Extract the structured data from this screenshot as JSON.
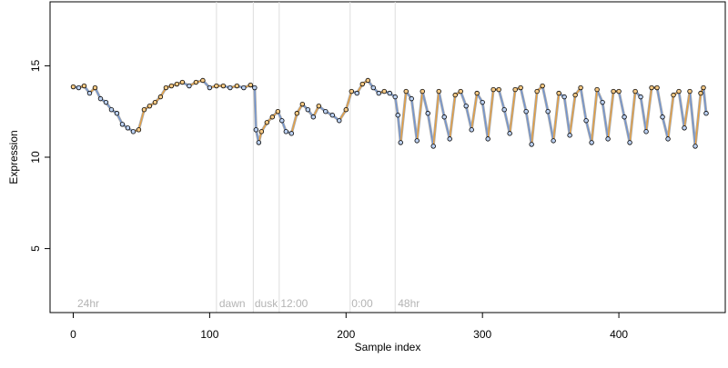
{
  "chart_data": {
    "type": "line",
    "xlabel": "Sample index",
    "ylabel": "Expression",
    "xlim": [
      -17,
      478
    ],
    "ylim": [
      1.5,
      18.5
    ],
    "x_ticks": [
      0,
      100,
      200,
      300,
      400
    ],
    "y_ticks": [
      5,
      10,
      15
    ],
    "grid": false,
    "legend": "none",
    "colors": {
      "gray_line": "#aaaaaa",
      "blue_line": "#6c93d6",
      "orange_line": "#ee9f35",
      "point_fill_blue": "#bcd1f2",
      "point_fill_orange": "#f6c984",
      "point_stroke": "#000000",
      "divider": "#dddddd",
      "segment_label": "#b4b4b4"
    },
    "segment_dividers": [
      105,
      132,
      151,
      203,
      236
    ],
    "segment_labels": [
      {
        "x": 3,
        "label": "24hr"
      },
      {
        "x": 107,
        "label": "dawn"
      },
      {
        "x": 133,
        "label": "dusk"
      },
      {
        "x": 152,
        "label": "12:00"
      },
      {
        "x": 204,
        "label": "0:00"
      },
      {
        "x": 238,
        "label": "48hr"
      }
    ],
    "series": [
      {
        "values": [
          {
            "x": 0,
            "y": 13.85
          },
          {
            "x": 4,
            "y": 13.8
          },
          {
            "x": 8,
            "y": 13.9
          },
          {
            "x": 12,
            "y": 13.5
          },
          {
            "x": 16,
            "y": 13.8
          },
          {
            "x": 20,
            "y": 13.2
          },
          {
            "x": 24,
            "y": 13.0
          },
          {
            "x": 28,
            "y": 12.6
          },
          {
            "x": 32,
            "y": 12.4
          },
          {
            "x": 36,
            "y": 11.8
          },
          {
            "x": 40,
            "y": 11.6
          },
          {
            "x": 44,
            "y": 11.4
          },
          {
            "x": 48,
            "y": 11.5
          },
          {
            "x": 52,
            "y": 12.6
          },
          {
            "x": 56,
            "y": 12.8
          },
          {
            "x": 60,
            "y": 13.0
          },
          {
            "x": 64,
            "y": 13.3
          },
          {
            "x": 68,
            "y": 13.8
          },
          {
            "x": 72,
            "y": 13.9
          },
          {
            "x": 76,
            "y": 14.0
          },
          {
            "x": 80,
            "y": 14.1
          },
          {
            "x": 85,
            "y": 13.9
          },
          {
            "x": 90,
            "y": 14.1
          },
          {
            "x": 95,
            "y": 14.2
          },
          {
            "x": 100,
            "y": 13.8
          },
          {
            "x": 105,
            "y": 13.9
          },
          {
            "x": 110,
            "y": 13.9
          },
          {
            "x": 115,
            "y": 13.8
          },
          {
            "x": 120,
            "y": 13.9
          },
          {
            "x": 125,
            "y": 13.8
          },
          {
            "x": 130,
            "y": 13.95
          },
          {
            "x": 133,
            "y": 13.8
          },
          {
            "x": 134,
            "y": 11.5
          },
          {
            "x": 136,
            "y": 10.8
          },
          {
            "x": 138,
            "y": 11.4
          },
          {
            "x": 142,
            "y": 11.9
          },
          {
            "x": 146,
            "y": 12.2
          },
          {
            "x": 150,
            "y": 12.5
          },
          {
            "x": 153,
            "y": 12.0
          },
          {
            "x": 156,
            "y": 11.4
          },
          {
            "x": 160,
            "y": 11.3
          },
          {
            "x": 164,
            "y": 12.4
          },
          {
            "x": 168,
            "y": 12.9
          },
          {
            "x": 172,
            "y": 12.6
          },
          {
            "x": 176,
            "y": 12.2
          },
          {
            "x": 180,
            "y": 12.8
          },
          {
            "x": 185,
            "y": 12.5
          },
          {
            "x": 190,
            "y": 12.3
          },
          {
            "x": 195,
            "y": 12.0
          },
          {
            "x": 200,
            "y": 12.6
          },
          {
            "x": 204,
            "y": 13.6
          },
          {
            "x": 208,
            "y": 13.5
          },
          {
            "x": 212,
            "y": 14.0
          },
          {
            "x": 216,
            "y": 14.2
          },
          {
            "x": 220,
            "y": 13.8
          },
          {
            "x": 224,
            "y": 13.5
          },
          {
            "x": 228,
            "y": 13.6
          },
          {
            "x": 232,
            "y": 13.5
          },
          {
            "x": 236,
            "y": 13.3
          },
          {
            "x": 238,
            "y": 12.3
          },
          {
            "x": 240,
            "y": 10.8
          },
          {
            "x": 244,
            "y": 13.6
          },
          {
            "x": 248,
            "y": 13.2
          },
          {
            "x": 252,
            "y": 10.9
          },
          {
            "x": 256,
            "y": 13.6
          },
          {
            "x": 260,
            "y": 12.4
          },
          {
            "x": 264,
            "y": 10.6
          },
          {
            "x": 268,
            "y": 13.6
          },
          {
            "x": 272,
            "y": 12.2
          },
          {
            "x": 276,
            "y": 11.0
          },
          {
            "x": 280,
            "y": 13.4
          },
          {
            "x": 284,
            "y": 13.6
          },
          {
            "x": 288,
            "y": 12.8
          },
          {
            "x": 292,
            "y": 11.5
          },
          {
            "x": 296,
            "y": 13.5
          },
          {
            "x": 300,
            "y": 13.0
          },
          {
            "x": 304,
            "y": 11.0
          },
          {
            "x": 308,
            "y": 13.7
          },
          {
            "x": 312,
            "y": 13.7
          },
          {
            "x": 316,
            "y": 12.6
          },
          {
            "x": 320,
            "y": 11.3
          },
          {
            "x": 324,
            "y": 13.7
          },
          {
            "x": 328,
            "y": 13.8
          },
          {
            "x": 332,
            "y": 12.5
          },
          {
            "x": 336,
            "y": 10.7
          },
          {
            "x": 340,
            "y": 13.6
          },
          {
            "x": 344,
            "y": 13.9
          },
          {
            "x": 348,
            "y": 12.5
          },
          {
            "x": 352,
            "y": 10.9
          },
          {
            "x": 356,
            "y": 13.5
          },
          {
            "x": 360,
            "y": 13.3
          },
          {
            "x": 364,
            "y": 11.2
          },
          {
            "x": 368,
            "y": 13.4
          },
          {
            "x": 372,
            "y": 13.8
          },
          {
            "x": 376,
            "y": 12.0
          },
          {
            "x": 380,
            "y": 10.8
          },
          {
            "x": 384,
            "y": 13.7
          },
          {
            "x": 388,
            "y": 13.0
          },
          {
            "x": 392,
            "y": 11.0
          },
          {
            "x": 396,
            "y": 13.6
          },
          {
            "x": 400,
            "y": 13.6
          },
          {
            "x": 404,
            "y": 12.2
          },
          {
            "x": 408,
            "y": 10.8
          },
          {
            "x": 412,
            "y": 13.6
          },
          {
            "x": 416,
            "y": 13.3
          },
          {
            "x": 420,
            "y": 11.4
          },
          {
            "x": 424,
            "y": 13.8
          },
          {
            "x": 428,
            "y": 13.8
          },
          {
            "x": 432,
            "y": 12.2
          },
          {
            "x": 436,
            "y": 11.0
          },
          {
            "x": 440,
            "y": 13.4
          },
          {
            "x": 444,
            "y": 13.6
          },
          {
            "x": 448,
            "y": 11.6
          },
          {
            "x": 452,
            "y": 13.6
          },
          {
            "x": 456,
            "y": 10.6
          },
          {
            "x": 460,
            "y": 13.5
          },
          {
            "x": 462,
            "y": 13.8
          },
          {
            "x": 464,
            "y": 12.4
          }
        ]
      }
    ]
  }
}
